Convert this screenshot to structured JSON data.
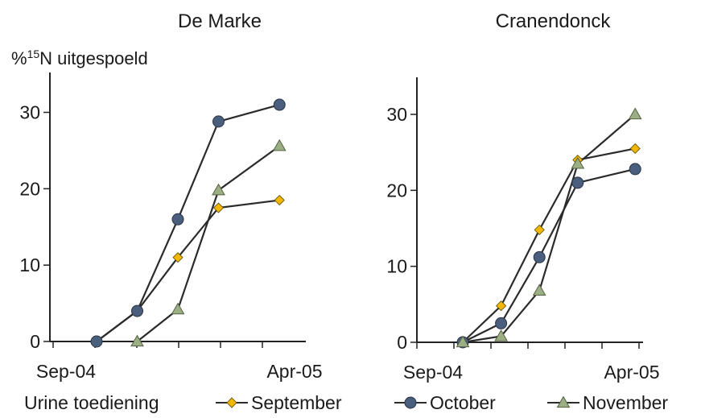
{
  "chart_data": [
    {
      "type": "line",
      "title": "De Marke",
      "ylabel": "uitgespoeld",
      "ylabel_prefix": "%",
      "ylabel_sup": "15",
      "ylabel_mid": "N",
      "ylim": [
        0,
        35
      ],
      "yticks": [
        0,
        10,
        20,
        30
      ],
      "xticks": [
        "Sep-04",
        "Apr-05"
      ],
      "grid": false,
      "series": [
        {
          "name": "September",
          "color": "#f2b705",
          "marker": "diamond",
          "points": [
            [
              0,
              0
            ],
            [
              1,
              4
            ],
            [
              2,
              11
            ],
            [
              3,
              17.5
            ],
            [
              4.5,
              18.5
            ]
          ]
        },
        {
          "name": "October",
          "color": "#4a5f7d",
          "marker": "circle",
          "points": [
            [
              0,
              0
            ],
            [
              1,
              4
            ],
            [
              2,
              16
            ],
            [
              3,
              28.8
            ],
            [
              4.5,
              31
            ]
          ]
        },
        {
          "name": "November",
          "color": "#9caf84",
          "marker": "triangle",
          "points": [
            [
              1.0,
              0
            ],
            [
              2,
              4.2
            ],
            [
              3,
              19.8
            ],
            [
              4.5,
              25.6
            ]
          ]
        }
      ]
    },
    {
      "type": "line",
      "title": "Cranendonck",
      "ylim": [
        0,
        35
      ],
      "yticks": [
        0,
        10,
        20,
        30
      ],
      "xticks": [
        "Sep-04",
        "Apr-05"
      ],
      "grid": false,
      "series": [
        {
          "name": "September",
          "color": "#f2b705",
          "marker": "diamond",
          "points": [
            [
              0,
              0
            ],
            [
              1,
              4.8
            ],
            [
              2,
              14.8
            ],
            [
              3,
              24
            ],
            [
              4.5,
              25.5
            ]
          ]
        },
        {
          "name": "October",
          "color": "#4a5f7d",
          "marker": "circle",
          "points": [
            [
              0,
              0
            ],
            [
              1,
              2.5
            ],
            [
              2,
              11.2
            ],
            [
              3,
              21
            ],
            [
              4.5,
              22.8
            ]
          ]
        },
        {
          "name": "November",
          "color": "#9caf84",
          "marker": "triangle",
          "points": [
            [
              0,
              0
            ],
            [
              1,
              0.8
            ],
            [
              2,
              6.8
            ],
            [
              3,
              23.5
            ],
            [
              4.5,
              30
            ]
          ]
        }
      ]
    }
  ],
  "legend": {
    "label": "Urine toediening",
    "items": [
      {
        "name": "September",
        "color": "#f2b705",
        "marker": "diamond"
      },
      {
        "name": "October",
        "color": "#4a5f7d",
        "marker": "circle"
      },
      {
        "name": "November",
        "color": "#9caf84",
        "marker": "triangle"
      }
    ],
    "placement": "bottom"
  }
}
